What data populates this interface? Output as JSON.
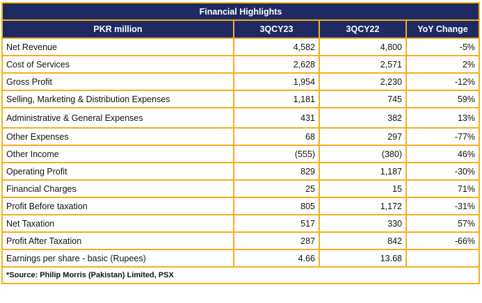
{
  "title": "Financial Highlights",
  "columns": [
    "PKR million",
    "3QCY23",
    "3QCY22",
    "YoY Change"
  ],
  "rows": [
    {
      "label": "Net Revenue",
      "cy23": "4,582",
      "cy22": "4,800",
      "yoy": "-5%"
    },
    {
      "label": "Cost of Services",
      "cy23": "2,628",
      "cy22": "2,571",
      "yoy": "2%"
    },
    {
      "label": "Gross Profit",
      "cy23": "1,954",
      "cy22": "2,230",
      "yoy": "-12%"
    },
    {
      "label": "Selling, Marketing & Distribution Expenses",
      "cy23": "1,181",
      "cy22": "745",
      "yoy": "59%"
    },
    {
      "label": "Administrative & General Expenses",
      "cy23": "431",
      "cy22": "382",
      "yoy": "13%"
    },
    {
      "label": "Other Expenses",
      "cy23": "68",
      "cy22": "297",
      "yoy": "-77%"
    },
    {
      "label": "Other Income",
      "cy23": "(555)",
      "cy22": "(380)",
      "yoy": "46%"
    },
    {
      "label": "Operating Profit",
      "cy23": "829",
      "cy22": "1,187",
      "yoy": "-30%"
    },
    {
      "label": "Financial Charges",
      "cy23": "25",
      "cy22": "15",
      "yoy": "71%"
    },
    {
      "label": "Profit Before taxation",
      "cy23": "805",
      "cy22": "1,172",
      "yoy": "-31%"
    },
    {
      "label": "Net Taxation",
      "cy23": "517",
      "cy22": "330",
      "yoy": "57%"
    },
    {
      "label": "Profit After Taxation",
      "cy23": "287",
      "cy22": "842",
      "yoy": "-66%"
    },
    {
      "label": "Earnings per share - basic (Rupees)",
      "cy23": "4.66",
      "cy22": "13.68",
      "yoy": ""
    }
  ],
  "source": "*Source: Philip Morris (Pakistan) Limited, PSX",
  "colors": {
    "header_bg": "#1F2A63",
    "border": "#F2B01E"
  }
}
